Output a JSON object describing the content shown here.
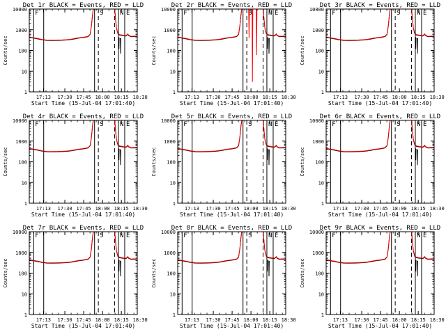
{
  "chart_data": [
    {
      "type": "line",
      "title": "Det 1r BLACK = Events, RED = LLD",
      "xlabel": "Start Time (15-Jul-04 17:01:40)",
      "ylabel": "Counts/sec",
      "variant": "standard"
    },
    {
      "type": "line",
      "title": "Det 2r BLACK = Events, RED = LLD",
      "xlabel": "Start Time (15-Jul-04 17:01:40)",
      "ylabel": "Counts/sec",
      "variant": "det2"
    },
    {
      "type": "line",
      "title": "Det 3r BLACK = Events, RED = LLD",
      "xlabel": "Start Time (15-Jul-04 17:01:40)",
      "ylabel": "Counts/sec",
      "variant": "standard"
    },
    {
      "type": "line",
      "title": "Det 4r BLACK = Events, RED = LLD",
      "xlabel": "Start Time (15-Jul-04 17:01:40)",
      "ylabel": "Counts/sec",
      "variant": "standard"
    },
    {
      "type": "line",
      "title": "Det 5r BLACK = Events, RED = LLD",
      "xlabel": "Start Time (15-Jul-04 17:01:40)",
      "ylabel": "Counts/sec",
      "variant": "standard"
    },
    {
      "type": "line",
      "title": "Det 6r BLACK = Events, RED = LLD",
      "xlabel": "Start Time (15-Jul-04 17:01:40)",
      "ylabel": "Counts/sec",
      "variant": "standard"
    },
    {
      "type": "line",
      "title": "Det 7r BLACK = Events, RED = LLD",
      "xlabel": "Start Time (15-Jul-04 17:01:40)",
      "ylabel": "Counts/sec",
      "variant": "standard"
    },
    {
      "type": "line",
      "title": "Det 8r BLACK = Events, RED = LLD",
      "xlabel": "Start Time (15-Jul-04 17:01:40)",
      "ylabel": "Counts/sec",
      "variant": "standard"
    },
    {
      "type": "line",
      "title": "Det 9r BLACK = Events, RED = LLD",
      "xlabel": "Start Time (15-Jul-04 17:01:40)",
      "ylabel": "Counts/sec",
      "variant": "standard"
    }
  ],
  "shared_axes": {
    "x_range_min": [
      0,
      86
    ],
    "x_ticks": [
      {
        "value": 11.33,
        "label": "17:13"
      },
      {
        "value": 28.33,
        "label": "17:30"
      },
      {
        "value": 43.33,
        "label": "17:45"
      },
      {
        "value": 58.33,
        "label": "18:00"
      },
      {
        "value": 73.33,
        "label": "18:15"
      },
      {
        "value": 88.33,
        "label": "18:30"
      }
    ],
    "y_log_range": [
      1,
      10000
    ],
    "y_ticks": [
      {
        "value": 1,
        "label": "1"
      },
      {
        "value": 10,
        "label": "10"
      },
      {
        "value": 100,
        "label": "100"
      },
      {
        "value": 1000,
        "label": "1000"
      },
      {
        "value": 10000,
        "label": "10000"
      }
    ]
  },
  "markers": [
    {
      "label": "F",
      "x": 3.5,
      "style": "solid"
    },
    {
      "label": "",
      "x": 11.5,
      "style": "solid"
    },
    {
      "label": "",
      "x": 52,
      "style": "solid"
    },
    {
      "label": "S",
      "x": 55,
      "style": "dashed"
    },
    {
      "label": "",
      "x": 68,
      "style": "dashed"
    },
    {
      "label": "N",
      "x": 71,
      "style": "solid"
    },
    {
      "label": "E",
      "x": 76,
      "style": "solid"
    }
  ],
  "colors": {
    "events": "#000000",
    "lld": "#ff0000",
    "axes": "#000000"
  }
}
